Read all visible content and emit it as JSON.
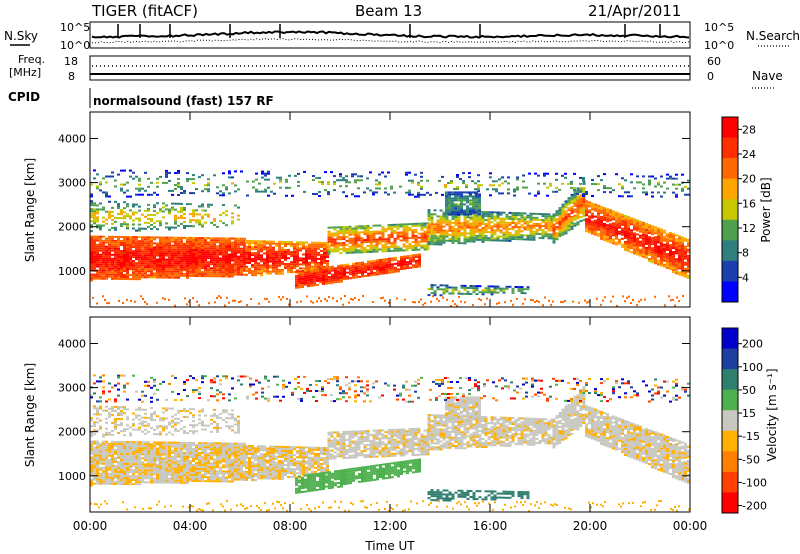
{
  "header": {
    "station": "TIGER (fitACF)",
    "beam": "Beam 13",
    "date": "21/Apr/2011"
  },
  "strip_labels": {
    "nsky": "N.Sky",
    "nsky_top": "10^5",
    "nsky_bottom": "10^0",
    "nsearch": "N.Search",
    "nsearch_top": "10^5",
    "nsearch_bottom": "10^0",
    "freq_label_1": "Freq.",
    "freq_label_2": "[MHz]",
    "freq_top": "18",
    "freq_bottom": "8",
    "nave": "Nave",
    "nave_top": "60",
    "nave_bottom": "0",
    "cpid": "CPID",
    "cpid_value": "normalsound (fast) 157 RF"
  },
  "colors": {
    "power_scale": [
      "#0000ff",
      "#1c3fb0",
      "#2f7f7f",
      "#4fa04f",
      "#c8c800",
      "#ffa500",
      "#ff6a00",
      "#ff3000",
      "#ff0000"
    ],
    "velocity_scale": [
      "#0000cc",
      "#1c3fa0",
      "#2f7f6f",
      "#4fb04f",
      "#c8c8c0",
      "#ffb000",
      "#ff8000",
      "#ff4000",
      "#ff0000"
    ]
  },
  "chart_data": [
    {
      "type": "heatmap",
      "name": "power-panel",
      "ylabel": "Slant Range [km]",
      "xlim": [
        0,
        24
      ],
      "ylim": [
        180,
        4600
      ],
      "yticks": [
        1000,
        2000,
        3000,
        4000
      ],
      "xticks": [
        0,
        4,
        8,
        12,
        16,
        20,
        24
      ],
      "colorbar": {
        "label": "Power [dB]",
        "ticks": [
          4,
          8,
          12,
          16,
          20,
          24,
          28
        ],
        "range": [
          0,
          30
        ]
      }
    },
    {
      "type": "heatmap",
      "name": "velocity-panel",
      "ylabel": "Slant Range [km]",
      "xlabel": "Time UT",
      "xlim": [
        0,
        24
      ],
      "ylim": [
        180,
        4600
      ],
      "yticks": [
        1000,
        2000,
        3000,
        4000
      ],
      "xticks": [
        0,
        4,
        8,
        12,
        16,
        20,
        24
      ],
      "xtick_labels": [
        "00:00",
        "04:00",
        "08:00",
        "12:00",
        "16:00",
        "20:00",
        "00:00"
      ],
      "colorbar": {
        "label": "Velocity [m s⁻¹]",
        "ticks": [
          200,
          100,
          50,
          15,
          -15,
          -50,
          -100,
          -200
        ]
      }
    }
  ]
}
